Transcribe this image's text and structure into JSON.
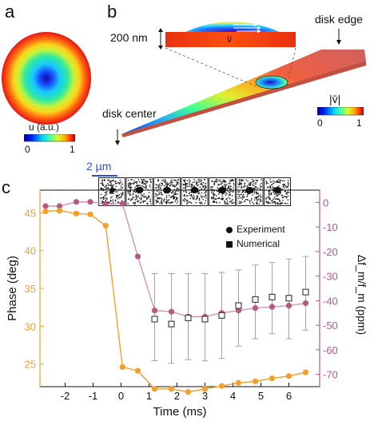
{
  "panels": {
    "a": "a",
    "b": "b",
    "c": "c"
  },
  "panel_a": {
    "colorbar_label": "u (a.u.)",
    "colorbar_min": "0",
    "colorbar_max": "1"
  },
  "panel_b": {
    "thickness_label": "200 nm",
    "disk_edge_label": "disk edge",
    "disk_center_label": "disk center",
    "velocity_inset_symbol": "v̄",
    "colorbar_label": "|v̄|",
    "colorbar_min": "0",
    "colorbar_max": "1"
  },
  "panel_c": {
    "scalebar_label": "2 µm",
    "legend": {
      "experiment": "Experiment",
      "numerical": "Numerical"
    }
  },
  "colors": {
    "phase": "#f2a02a",
    "freq": "#b65a82",
    "freq_light": "#d495b2",
    "numerical_box": "#222222",
    "errorbar": "#9a9a9a",
    "scalebar": "#2a4fd6"
  },
  "chart_data": {
    "type": "line",
    "xlabel": "Time (ms)",
    "ylabel_left": "Phase (deg)",
    "ylabel_right": "Δf_m/f_m (ppm)",
    "xlim": [
      -2.9,
      7.1
    ],
    "ylim_left": [
      22,
      48
    ],
    "ylim_right": [
      -75,
      5
    ],
    "x_ticks": [
      -2,
      -1,
      0,
      1,
      2,
      3,
      4,
      5,
      6
    ],
    "y_ticks_left": [
      25,
      30,
      35,
      40,
      45
    ],
    "y_ticks_right": [
      0,
      -10,
      -20,
      -30,
      -40,
      -50,
      -60,
      -70
    ],
    "series": [
      {
        "name": "Phase",
        "axis": "left",
        "x": [
          -2.7,
          -2.2,
          -1.6,
          -1.1,
          -0.55,
          0.05,
          0.6,
          1.2,
          1.8,
          2.4,
          3.0,
          3.6,
          4.2,
          4.8,
          5.4,
          6.0,
          6.6
        ],
        "values": [
          45.2,
          45.3,
          44.9,
          44.8,
          43.3,
          24.6,
          24.1,
          21.7,
          21.7,
          21.3,
          21.7,
          22.1,
          22.5,
          22.7,
          23.1,
          23.4,
          23.9
        ]
      },
      {
        "name": "Δf_m/f_m",
        "axis": "right",
        "x": [
          -2.7,
          -2.2,
          -1.6,
          -1.1,
          -0.55,
          0.05,
          0.6,
          1.2,
          1.8,
          2.4,
          3.0,
          3.6,
          4.2,
          4.8,
          5.4,
          6.0,
          6.6
        ],
        "values": [
          -1.5,
          -1.5,
          0.2,
          0.2,
          -0.5,
          -0.5,
          -22.0,
          -44.0,
          -44.5,
          -46.5,
          -46.5,
          -45.0,
          -44.0,
          -43.0,
          -42.5,
          -42.0,
          -41.0
        ]
      },
      {
        "name": "Numerical",
        "axis": "right",
        "x": [
          1.2,
          1.8,
          2.4,
          3.0,
          3.6,
          4.2,
          4.8,
          5.4,
          6.0,
          6.6
        ],
        "values": [
          -47.5,
          -49.5,
          -47.0,
          -47.5,
          -46.0,
          -42.0,
          -39.5,
          -38.5,
          -39.0,
          -36.5
        ],
        "err_high": [
          -29.0,
          -29.0,
          -29.0,
          -29.0,
          -28.5,
          -27.5,
          -25.5,
          -24.5,
          -23.0,
          -22.0
        ],
        "err_low": [
          -64.5,
          -65.5,
          -64.0,
          -64.5,
          -63.5,
          -58.5,
          -55.5,
          -53.5,
          -55.5,
          -52.0
        ]
      }
    ]
  }
}
